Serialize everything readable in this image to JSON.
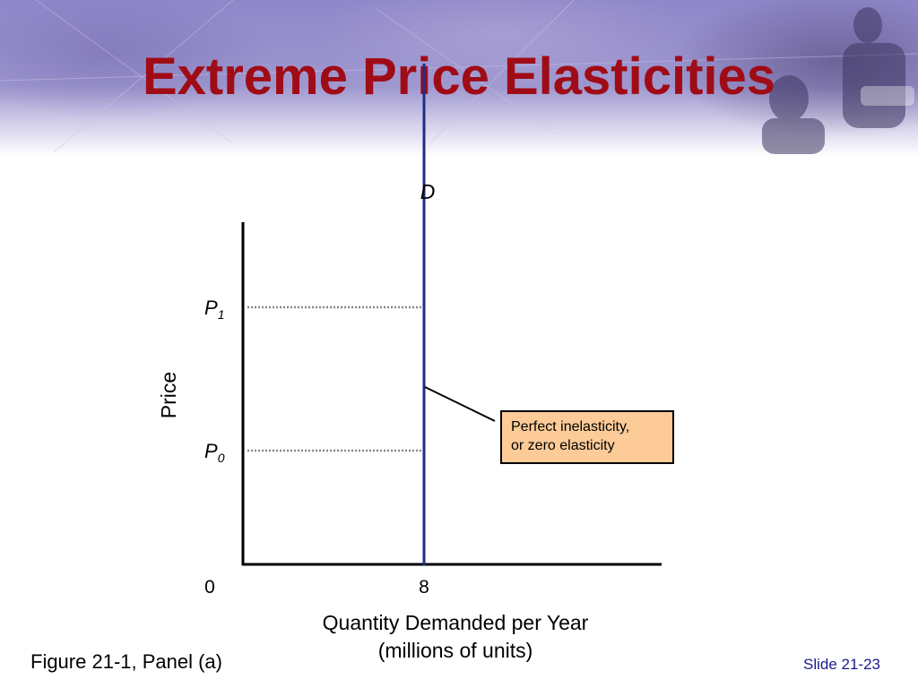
{
  "slide": {
    "title": "Extreme Price Elasticities",
    "figure_caption": "Figure 21-1, Panel (a)",
    "slide_number": "Slide 21-23"
  },
  "chart_data": {
    "type": "line",
    "ylabel": "Price",
    "xlabel_line1": "Quantity Demanded per Year",
    "xlabel_line2": "(millions of units)",
    "x_ticks": [
      "0",
      "8"
    ],
    "price_levels": [
      {
        "symbol": "P",
        "subscript": "1",
        "value": 1
      },
      {
        "symbol": "P",
        "subscript": "0",
        "value": 0
      }
    ],
    "series": [
      {
        "name": "D",
        "color": "#1f2d86",
        "points": [
          {
            "x": 8,
            "y": 2.7
          },
          {
            "x": 8,
            "y": -0.8
          }
        ]
      }
    ],
    "annotation": {
      "text_line1": "Perfect inelasticity,",
      "text_line2": "or zero elasticity",
      "fill": "#fccb98"
    },
    "grid": false,
    "guide_style": "dotted",
    "guide_color": "#888888"
  }
}
